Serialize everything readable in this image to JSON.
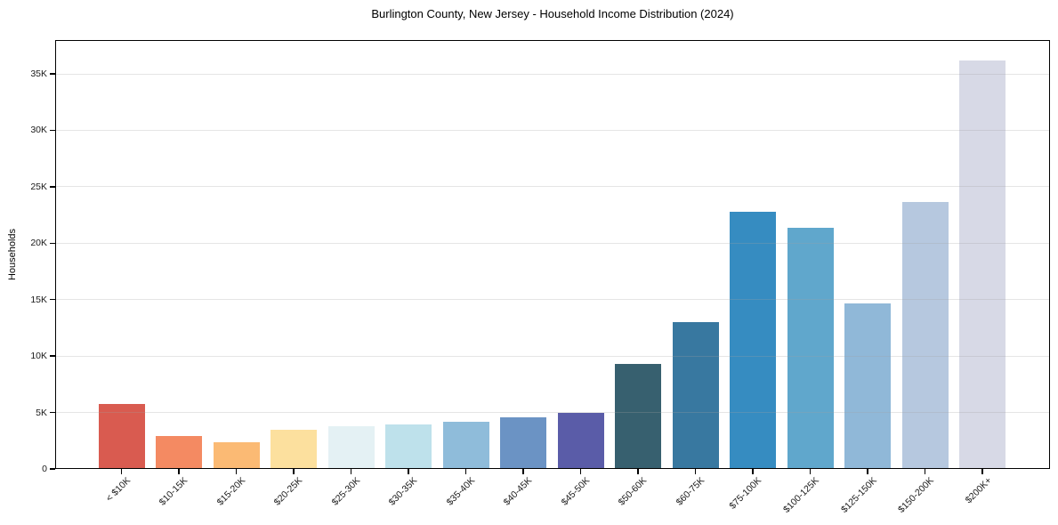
{
  "chart_data": {
    "type": "bar",
    "title": "Burlington County, New Jersey - Household Income Distribution (2024)",
    "xlabel": "",
    "ylabel": "Households",
    "ylim": [
      0,
      38000
    ],
    "grid": true,
    "legend": false,
    "categories": [
      "< $10K",
      "$10-15K",
      "$15-20K",
      "$20-25K",
      "$25-30K",
      "$30-35K",
      "$35-40K",
      "$40-45K",
      "$45-50K",
      "$50-60K",
      "$60-75K",
      "$75-100K",
      "$100-125K",
      "$125-150K",
      "$150-200K",
      "$200K+"
    ],
    "values": [
      5750,
      2900,
      2350,
      3500,
      3750,
      3950,
      4200,
      4550,
      5000,
      9300,
      13000,
      22800,
      21400,
      14650,
      23650,
      36150
    ],
    "bar_colors": [
      "#d95b50",
      "#f48a62",
      "#fbba74",
      "#fce09e",
      "#e4f1f4",
      "#bee1eb",
      "#8fbcda",
      "#6b93c4",
      "#5a5ca8",
      "#37606f",
      "#3878a0",
      "#368cc1",
      "#60a7cc",
      "#90b8d8",
      "#b6c8df",
      "#d7d9e6"
    ],
    "yticks": {
      "values": [
        0,
        5000,
        10000,
        15000,
        20000,
        25000,
        30000,
        35000
      ],
      "labels": [
        "0",
        "5K",
        "10K",
        "15K",
        "20K",
        "25K",
        "30K",
        "35K"
      ]
    },
    "axis_color": "#000000",
    "grid_color": "#e8e8e8",
    "text_color": "#1a1a1a"
  }
}
